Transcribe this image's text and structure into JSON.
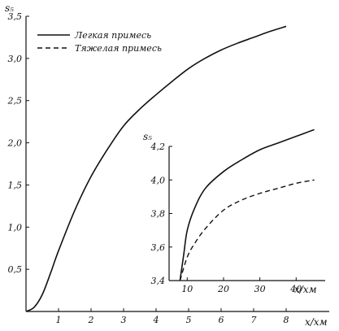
{
  "chart_data": [
    {
      "type": "line",
      "title": "",
      "xlabel": "x/xм",
      "ylabel": "s₅",
      "xlim": [
        0,
        9
      ],
      "ylim": [
        0,
        3.5
      ],
      "x_ticks": [
        {
          "value": 1,
          "label": "1"
        },
        {
          "value": 2,
          "label": "2"
        },
        {
          "value": 3,
          "label": "3"
        },
        {
          "value": 4,
          "label": "4"
        },
        {
          "value": 5,
          "label": "5"
        },
        {
          "value": 6,
          "label": "6"
        },
        {
          "value": 7,
          "label": "7"
        },
        {
          "value": 8,
          "label": "8"
        }
      ],
      "y_ticks": [
        {
          "value": 0.5,
          "label": "0,5"
        },
        {
          "value": 1.0,
          "label": "1,0"
        },
        {
          "value": 1.5,
          "label": "1,5"
        },
        {
          "value": 2.0,
          "label": "2,0"
        },
        {
          "value": 2.5,
          "label": "2,5"
        },
        {
          "value": 3.0,
          "label": "3,0"
        },
        {
          "value": 3.5,
          "label": "3,5"
        }
      ],
      "legend": {
        "placement": "top-left",
        "entries": [
          {
            "label": "Легкая примесь",
            "style": "solid"
          },
          {
            "label": "Тяжелая примесь",
            "style": "dashed"
          }
        ]
      },
      "series": [
        {
          "style": "solid",
          "x": [
            0,
            0.25,
            0.5,
            0.75,
            1.0,
            1.5,
            2.0,
            2.5,
            3.0,
            3.5,
            4.0,
            4.5,
            5.0,
            5.5,
            6.0,
            6.5,
            7.0,
            7.5,
            8.0
          ],
          "y": [
            0,
            0.05,
            0.2,
            0.45,
            0.72,
            1.2,
            1.6,
            1.92,
            2.2,
            2.4,
            2.57,
            2.73,
            2.88,
            3.0,
            3.1,
            3.18,
            3.25,
            3.32,
            3.38
          ]
        }
      ]
    },
    {
      "type": "line",
      "title": "",
      "xlabel": "x/xм",
      "ylabel": "s₅",
      "xlim": [
        5,
        48
      ],
      "ylim": [
        3.4,
        4.2
      ],
      "x_ticks": [
        {
          "value": 10,
          "label": "10"
        },
        {
          "value": 20,
          "label": "20"
        },
        {
          "value": 30,
          "label": "30"
        },
        {
          "value": 40,
          "label": "40"
        }
      ],
      "y_ticks": [
        {
          "value": 3.4,
          "label": "3,4"
        },
        {
          "value": 3.6,
          "label": "3,6"
        },
        {
          "value": 3.8,
          "label": "3,8"
        },
        {
          "value": 4.0,
          "label": "4,0"
        },
        {
          "value": 4.2,
          "label": "4,2"
        }
      ],
      "series": [
        {
          "style": "solid",
          "x": [
            8,
            9,
            10,
            12,
            15,
            20,
            25,
            30,
            35,
            40,
            45
          ],
          "y": [
            3.4,
            3.55,
            3.7,
            3.83,
            3.95,
            4.05,
            4.12,
            4.18,
            4.22,
            4.26,
            4.3
          ]
        },
        {
          "style": "dashed",
          "x": [
            8,
            10,
            12,
            15,
            20,
            25,
            30,
            35,
            40,
            45
          ],
          "y": [
            3.4,
            3.54,
            3.62,
            3.71,
            3.82,
            3.88,
            3.92,
            3.95,
            3.98,
            4.0
          ]
        }
      ]
    }
  ]
}
